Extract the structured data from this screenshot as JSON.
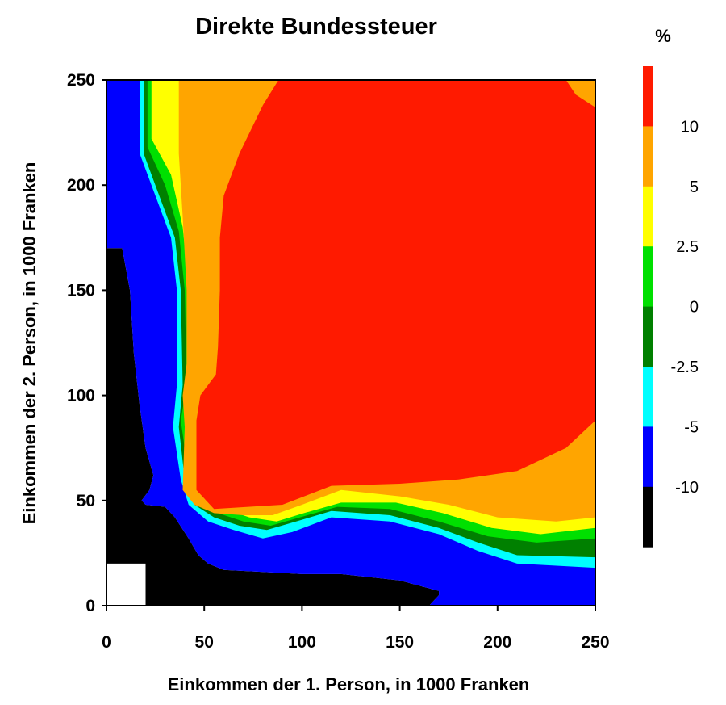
{
  "chart_data": {
    "type": "heatmap",
    "title": "Direkte Bundessteuer",
    "xlabel": "Einkommen der 1. Person, in 1000 Franken",
    "ylabel": "Einkommen der 2. Person, in 1000 Franken",
    "xlim": [
      0,
      250
    ],
    "ylim": [
      0,
      250
    ],
    "xticks": [
      "0",
      "50",
      "100",
      "150",
      "200",
      "250"
    ],
    "yticks": [
      "0",
      "50",
      "100",
      "150",
      "200",
      "250"
    ],
    "colorbar": {
      "unit": "%",
      "tick_labels": [
        "10",
        "5",
        "2.5",
        "0",
        "-2.5",
        "-5",
        "-10"
      ],
      "bins_top_to_bottom": [
        {
          "range": "> 10",
          "color": "#ff1a00"
        },
        {
          "range": "5 – 10",
          "color": "#ffa500"
        },
        {
          "range": "2.5 – 5",
          "color": "#ffff00"
        },
        {
          "range": "0 – 2.5",
          "color": "#00e000"
        },
        {
          "range": "-2.5 – 0",
          "color": "#008000"
        },
        {
          "range": "-5 – -2.5",
          "color": "#00ffff"
        },
        {
          "range": "-10 – -5",
          "color": "#0000ff"
        },
        {
          "range": "< -10",
          "color": "#000000"
        }
      ]
    },
    "regions": [
      {
        "name": "no-data",
        "color": "#ffffff",
        "points": [
          [
            0,
            0
          ],
          [
            20,
            0
          ],
          [
            20,
            20
          ],
          [
            0,
            20
          ]
        ]
      },
      {
        "name": "below-minus-10",
        "color": "#000000",
        "points": [
          [
            0,
            20
          ],
          [
            0,
            170
          ],
          [
            8,
            170
          ],
          [
            12,
            150
          ],
          [
            14,
            120
          ],
          [
            17,
            95
          ],
          [
            20,
            75
          ],
          [
            24,
            62
          ],
          [
            22,
            55
          ],
          [
            18,
            50
          ],
          [
            20,
            48
          ],
          [
            30,
            47
          ],
          [
            35,
            42
          ],
          [
            42,
            32
          ],
          [
            47,
            24
          ],
          [
            52,
            20
          ],
          [
            60,
            17
          ],
          [
            80,
            16
          ],
          [
            100,
            15
          ],
          [
            120,
            15
          ],
          [
            150,
            12
          ],
          [
            170,
            7
          ],
          [
            170,
            5
          ],
          [
            165,
            0
          ],
          [
            20,
            0
          ],
          [
            20,
            20
          ]
        ]
      },
      {
        "name": "minus-10-to-minus-5",
        "color": "#0000ff",
        "points": [
          [
            0,
            170
          ],
          [
            0,
            250
          ],
          [
            250,
            250
          ],
          [
            250,
            0
          ],
          [
            165,
            0
          ],
          [
            170,
            5
          ],
          [
            170,
            7
          ],
          [
            150,
            12
          ],
          [
            120,
            15
          ],
          [
            100,
            15
          ],
          [
            80,
            16
          ],
          [
            60,
            17
          ],
          [
            52,
            20
          ],
          [
            47,
            24
          ],
          [
            42,
            32
          ],
          [
            35,
            42
          ],
          [
            30,
            47
          ],
          [
            20,
            48
          ],
          [
            18,
            50
          ],
          [
            22,
            55
          ],
          [
            24,
            62
          ],
          [
            20,
            75
          ],
          [
            17,
            95
          ],
          [
            14,
            120
          ],
          [
            12,
            150
          ],
          [
            8,
            170
          ]
        ]
      },
      {
        "name": "minus-5-to-minus-2.5",
        "color": "#00ffff",
        "points": [
          [
            17,
            250
          ],
          [
            17,
            215
          ],
          [
            25,
            195
          ],
          [
            33,
            175
          ],
          [
            36,
            150
          ],
          [
            36,
            105
          ],
          [
            34,
            85
          ],
          [
            38,
            60
          ],
          [
            42,
            48
          ],
          [
            52,
            40
          ],
          [
            65,
            36
          ],
          [
            80,
            32
          ],
          [
            95,
            35
          ],
          [
            115,
            42
          ],
          [
            145,
            40
          ],
          [
            170,
            34
          ],
          [
            190,
            26
          ],
          [
            210,
            20
          ],
          [
            250,
            18
          ],
          [
            250,
            250
          ]
        ]
      },
      {
        "name": "minus-2.5-to-0",
        "color": "#008000",
        "points": [
          [
            19,
            250
          ],
          [
            19,
            215
          ],
          [
            27,
            195
          ],
          [
            35,
            175
          ],
          [
            38,
            150
          ],
          [
            39,
            105
          ],
          [
            37,
            85
          ],
          [
            40,
            60
          ],
          [
            45,
            48
          ],
          [
            55,
            42
          ],
          [
            68,
            38
          ],
          [
            82,
            36
          ],
          [
            97,
            40
          ],
          [
            115,
            45
          ],
          [
            145,
            43
          ],
          [
            170,
            37
          ],
          [
            190,
            30
          ],
          [
            210,
            24
          ],
          [
            250,
            23
          ],
          [
            250,
            250
          ]
        ]
      },
      {
        "name": "0-to-2.5",
        "color": "#00e000",
        "points": [
          [
            21,
            250
          ],
          [
            21,
            218
          ],
          [
            30,
            200
          ],
          [
            37,
            178
          ],
          [
            40,
            150
          ],
          [
            41,
            105
          ],
          [
            38,
            88
          ],
          [
            42,
            62
          ],
          [
            47,
            50
          ],
          [
            57,
            44
          ],
          [
            70,
            40
          ],
          [
            84,
            38
          ],
          [
            99,
            42
          ],
          [
            118,
            47
          ],
          [
            145,
            46
          ],
          [
            170,
            40
          ],
          [
            195,
            33
          ],
          [
            220,
            30
          ],
          [
            250,
            32
          ],
          [
            250,
            250
          ]
        ]
      },
      {
        "name": "2.5-to-5",
        "color": "#ffff00",
        "points": [
          [
            23,
            250
          ],
          [
            23,
            222
          ],
          [
            33,
            205
          ],
          [
            39,
            180
          ],
          [
            42,
            152
          ],
          [
            43,
            108
          ],
          [
            40,
            92
          ],
          [
            44,
            64
          ],
          [
            49,
            52
          ],
          [
            60,
            46
          ],
          [
            73,
            42
          ],
          [
            87,
            40
          ],
          [
            101,
            44
          ],
          [
            120,
            49
          ],
          [
            148,
            49
          ],
          [
            172,
            44
          ],
          [
            197,
            37
          ],
          [
            222,
            34
          ],
          [
            250,
            37
          ],
          [
            250,
            250
          ]
        ]
      },
      {
        "name": "5-to-10",
        "color": "#ffa500",
        "points": [
          [
            37,
            250
          ],
          [
            37,
            215
          ],
          [
            39,
            185
          ],
          [
            41,
            150
          ],
          [
            41,
            115
          ],
          [
            39,
            100
          ],
          [
            40,
            85
          ],
          [
            39,
            55
          ],
          [
            45,
            48
          ],
          [
            55,
            44
          ],
          [
            70,
            43
          ],
          [
            85,
            43
          ],
          [
            100,
            48
          ],
          [
            120,
            55
          ],
          [
            150,
            52
          ],
          [
            175,
            48
          ],
          [
            200,
            42
          ],
          [
            230,
            40
          ],
          [
            250,
            42
          ],
          [
            250,
            250
          ]
        ]
      },
      {
        "name": "above-10",
        "color": "#ff1a00",
        "points": [
          [
            88,
            250
          ],
          [
            80,
            238
          ],
          [
            68,
            215
          ],
          [
            60,
            195
          ],
          [
            58,
            175
          ],
          [
            58,
            150
          ],
          [
            57,
            123
          ],
          [
            56,
            110
          ],
          [
            48,
            100
          ],
          [
            46,
            88
          ],
          [
            46,
            75
          ],
          [
            46,
            55
          ],
          [
            55,
            46
          ],
          [
            90,
            48
          ],
          [
            115,
            57
          ],
          [
            150,
            58
          ],
          [
            180,
            60
          ],
          [
            210,
            64
          ],
          [
            235,
            75
          ],
          [
            250,
            88
          ],
          [
            250,
            237
          ],
          [
            240,
            243
          ],
          [
            235,
            250
          ]
        ]
      }
    ]
  }
}
